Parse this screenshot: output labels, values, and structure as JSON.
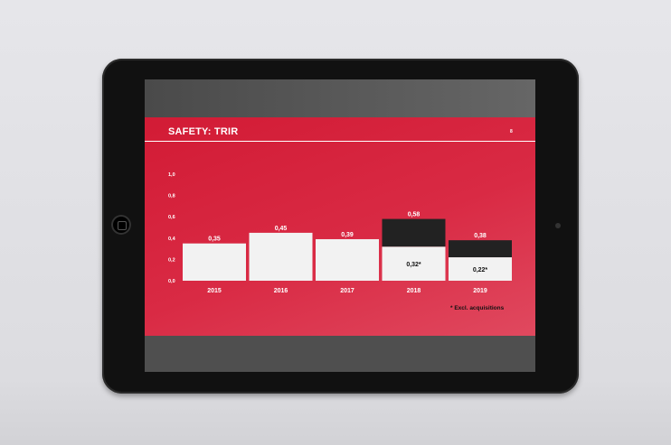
{
  "slide": {
    "title": "SAFETY: TRIR",
    "page_number": "8",
    "footnote": "* Excl. acquisitions"
  },
  "colors": {
    "slide_red": "#d21b35",
    "bar_light": "#f2f2f2",
    "bar_dark": "#222222"
  },
  "chart_data": {
    "type": "bar",
    "title": "SAFETY: TRIR",
    "categories": [
      "2015",
      "2016",
      "2017",
      "2018",
      "2019"
    ],
    "series": [
      {
        "values": [
          0.35,
          0.45,
          0.39,
          0.32,
          0.22
        ],
        "labels": [
          "0,35",
          "0,45",
          "0,39",
          "0,32*",
          "0,22*"
        ],
        "color": "#f2f2f2"
      },
      {
        "values": [
          0,
          0,
          0,
          0.26,
          0.16
        ],
        "color": "#222222"
      }
    ],
    "totals": [
      0.35,
      0.45,
      0.39,
      0.58,
      0.38
    ],
    "total_labels": [
      "0,35",
      "0,45",
      "0,39",
      "0,58",
      "0,38"
    ],
    "ylim": [
      0,
      1.0
    ],
    "yticks": [
      "0,0",
      "0,2",
      "0,4",
      "0,6",
      "0,8",
      "1,0"
    ],
    "stacked": true,
    "grid": false,
    "annotation": "* Excl. acquisitions"
  }
}
